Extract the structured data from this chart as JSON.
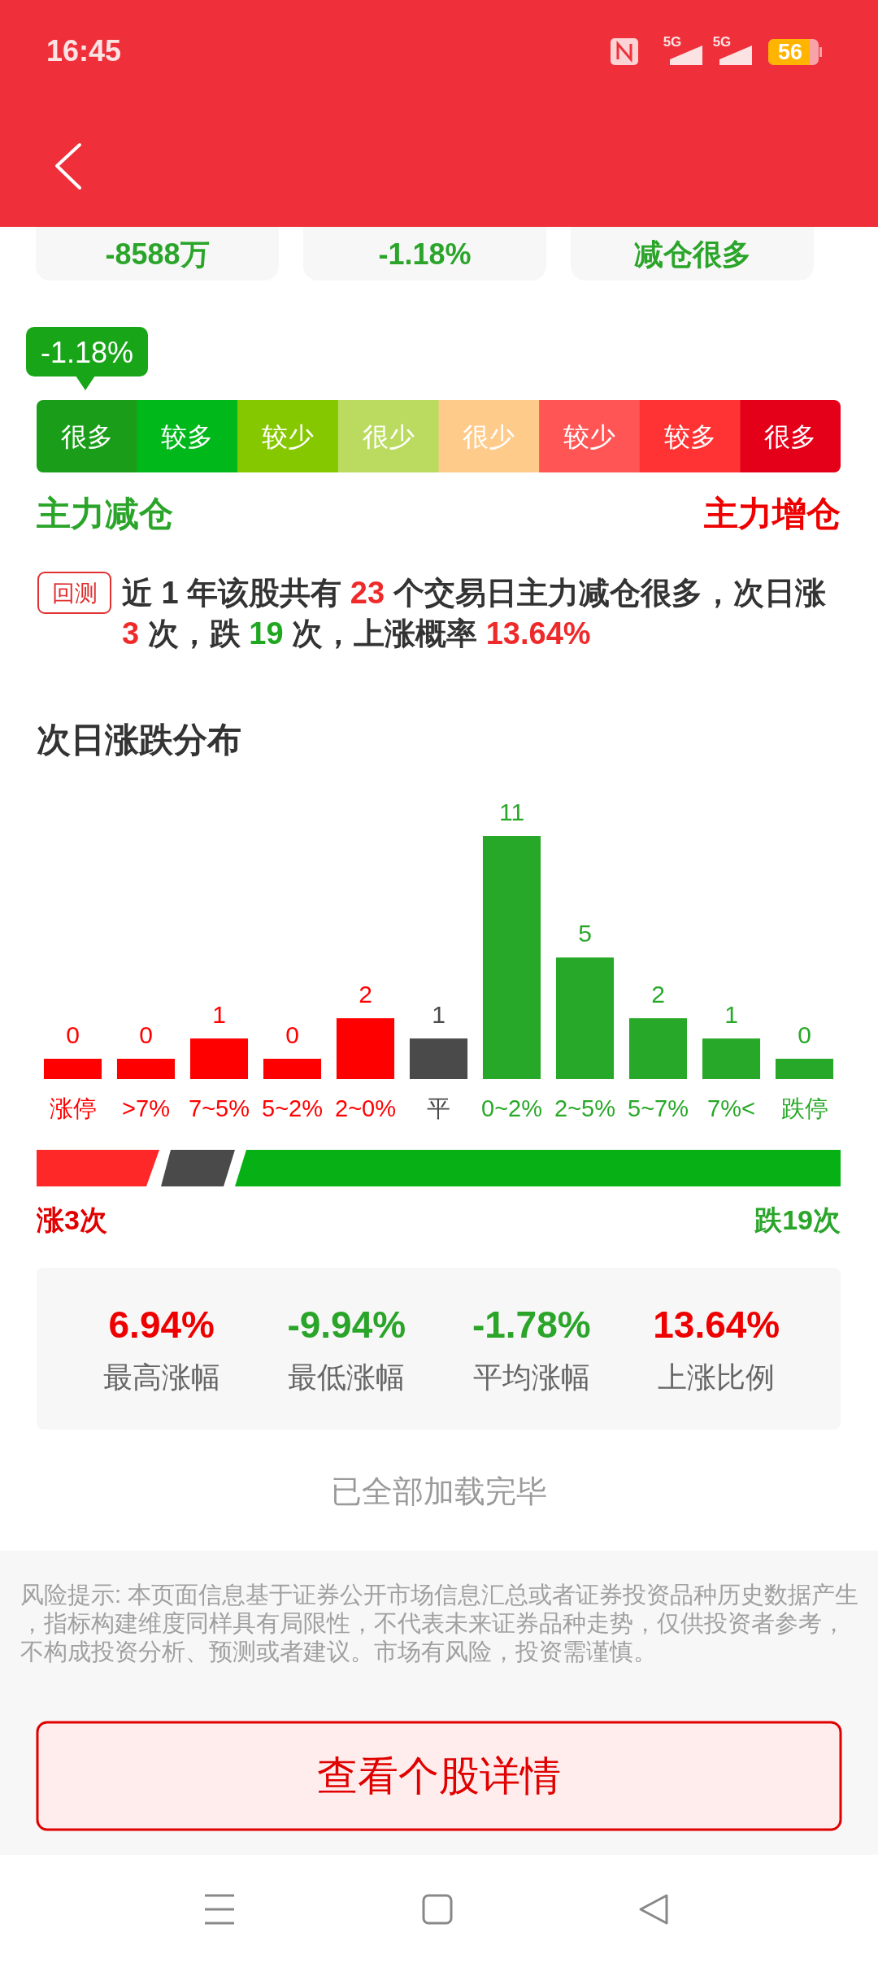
{
  "chart_data": [
    {
      "type": "other",
      "annotations": [
        "16:45",
        "5G",
        "5G",
        "56",
        "-8588万",
        "-1.18%",
        "减仓很多"
      ]
    },
    {
      "type": "other",
      "categories": [
        "很多",
        "较多",
        "较少",
        "很少",
        "很少",
        "较少",
        "较多",
        "很多"
      ],
      "colors": [
        "#1a9e1a",
        "#00b81a",
        "#86c800",
        "#badb60",
        "#ffcb8a",
        "#ff5555",
        "#ff3333",
        "#e5001a"
      ],
      "annotations": [
        "-1.18%",
        "主力减仓",
        "主力增仓"
      ]
    },
    {
      "type": "other",
      "annotations": [
        "回测",
        "近 1 年该股共有 23 个交易日主力减仓很多，次日涨 3 次，跌 19 次，上涨概率 13.64%"
      ],
      "colors": [
        "#333333",
        "#ee2a2a",
        "#ee2a2a",
        "#1fa81f",
        "#ee2a2a"
      ]
    },
    {
      "type": "bar",
      "title": "次日涨跌分布",
      "categories": [
        "涨停",
        ">7%",
        "7~5%",
        "5~2%",
        "2~0%",
        "平",
        "0~2%",
        "2~5%",
        "5~7%",
        "7%<",
        "跌停"
      ],
      "values": [
        0,
        0,
        1,
        0,
        2,
        1,
        11,
        5,
        2,
        1,
        0
      ],
      "colors": [
        "#ff0000",
        "#ff0000",
        "#ff0000",
        "#ff0000",
        "#ff0000",
        "#4a4a4a",
        "#28a828",
        "#28a828",
        "#28a828",
        "#28a828",
        "#28a828"
      ],
      "data_labels": true
    },
    {
      "type": "other",
      "annotations": [
        "涨3次",
        "跌19次"
      ],
      "colors": [
        "#ff2828",
        "#4a4a4a",
        "#06b015"
      ]
    },
    {
      "type": "other",
      "annotations": [
        "6.94%",
        "最高涨幅",
        "-9.94%",
        "最低涨幅",
        "-1.78%",
        "平均涨幅",
        "13.64%",
        "上涨比例"
      ],
      "colors": [
        "#ee0000",
        "#2aa52a",
        "#2aa52a",
        "#ee0000"
      ]
    },
    {
      "type": "other",
      "annotations": [
        "已全部加载完毕",
        "风险提示: 本页面信息基于证券公开市场信息汇总或者证券投资品种历史数据产生，指标构建维度同样具有局限性，不代表未来证券品种走势，仅供投资者参考，不构成投资分析、预测或者建议。市场有风险，投资需谨慎。",
        "查看个股详情"
      ]
    }
  ]
}
